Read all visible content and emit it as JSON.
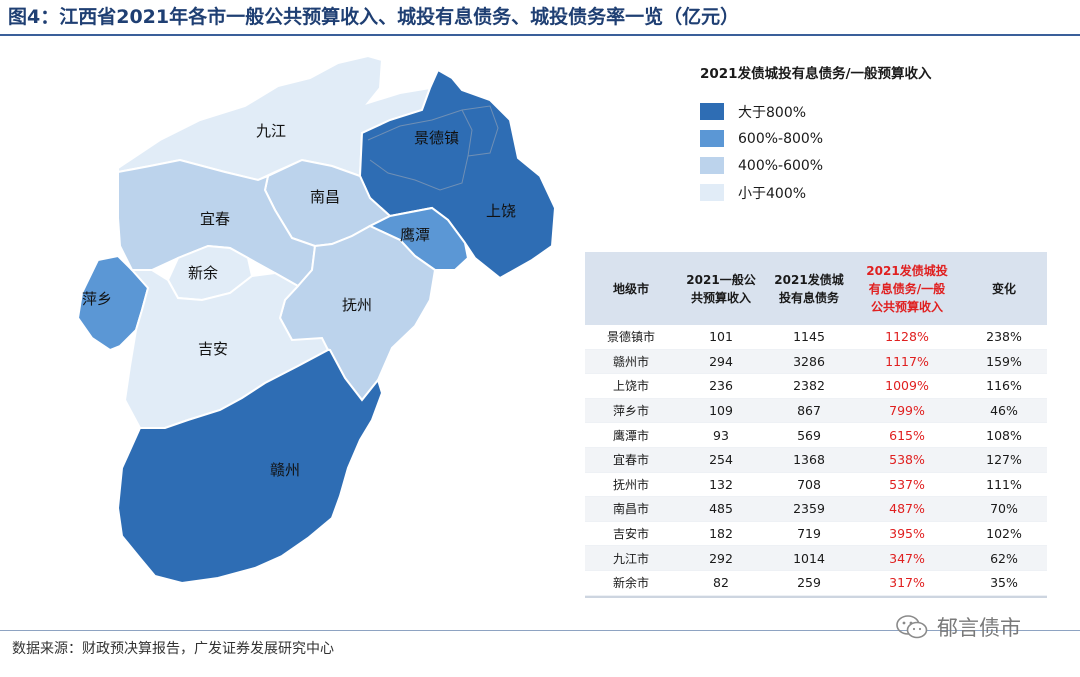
{
  "title": "图4：江西省2021年各市一般公共预算收入、城投有息债务、城投债务率一览（亿元）",
  "legend": {
    "title": "2021发债城投有息债务/一般预算收入",
    "items": [
      {
        "label": "大于800%",
        "color": "#2e6db4"
      },
      {
        "label": "600%-800%",
        "color": "#5b97d5"
      },
      {
        "label": "400%-600%",
        "color": "#bcd3ec"
      },
      {
        "label": "小于400%",
        "color": "#e1ecf7"
      }
    ]
  },
  "map": {
    "labels": {
      "jiujiang": "九江",
      "jingdezhen": "景德镇",
      "shangrao": "上饶",
      "nanchang": "南昌",
      "yichun": "宜春",
      "yingtan": "鹰潭",
      "xinyu": "新余",
      "pingxiang": "萍乡",
      "fuzhou": "抚州",
      "jian": "吉安",
      "ganzhou": "赣州"
    }
  },
  "chart_data": {
    "type": "table",
    "columns": [
      "地级市",
      "2021一般公共预算收入",
      "2021发债城投有息债务",
      "2021发债城投有息债务/一般公共预算收入",
      "变化"
    ],
    "rows": [
      {
        "city": "景德镇市",
        "revenue": 101,
        "debt": 1145,
        "ratio": "1128%",
        "change": "238%"
      },
      {
        "city": "赣州市",
        "revenue": 294,
        "debt": 3286,
        "ratio": "1117%",
        "change": "159%"
      },
      {
        "city": "上饶市",
        "revenue": 236,
        "debt": 2382,
        "ratio": "1009%",
        "change": "116%"
      },
      {
        "city": "萍乡市",
        "revenue": 109,
        "debt": 867,
        "ratio": "799%",
        "change": "46%"
      },
      {
        "city": "鹰潭市",
        "revenue": 93,
        "debt": 569,
        "ratio": "615%",
        "change": "108%"
      },
      {
        "city": "宜春市",
        "revenue": 254,
        "debt": 1368,
        "ratio": "538%",
        "change": "127%"
      },
      {
        "city": "抚州市",
        "revenue": 132,
        "debt": 708,
        "ratio": "537%",
        "change": "111%"
      },
      {
        "city": "南昌市",
        "revenue": 485,
        "debt": 2359,
        "ratio": "487%",
        "change": "70%"
      },
      {
        "city": "吉安市",
        "revenue": 182,
        "debt": 719,
        "ratio": "395%",
        "change": "102%"
      },
      {
        "city": "九江市",
        "revenue": 292,
        "debt": 1014,
        "ratio": "347%",
        "change": "62%"
      },
      {
        "city": "新余市",
        "revenue": 82,
        "debt": 259,
        "ratio": "317%",
        "change": "35%"
      }
    ]
  },
  "table": {
    "header": {
      "city": [
        "地级市"
      ],
      "revenue": [
        "2021一般公",
        "共预算收入"
      ],
      "debt": [
        "2021发债城",
        "投有息债务"
      ],
      "ratio": [
        "2021发债城投",
        "有息债务/一般",
        "公共预算收入"
      ],
      "change": [
        "变化"
      ]
    }
  },
  "source": "数据来源：财政预决算报告，广发证券发展研究中心",
  "watermark": "郁言债市"
}
